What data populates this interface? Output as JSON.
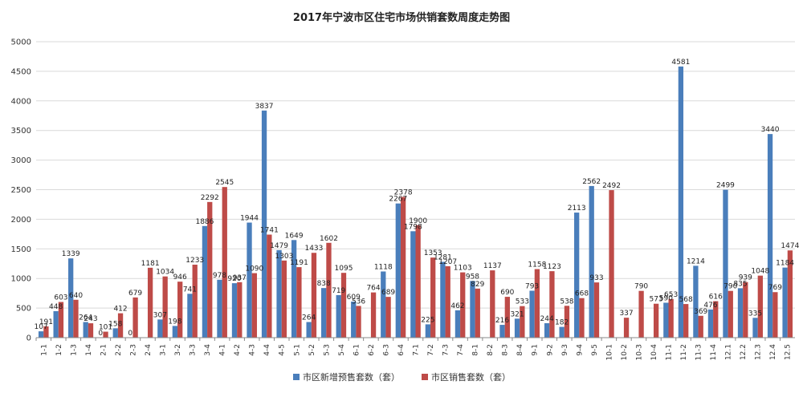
{
  "chart_data": {
    "type": "bar",
    "title": "2017年宁波市区住宅市场供销套数周度走势图",
    "ylim": [
      0,
      5000
    ],
    "yticks": [
      0,
      500,
      1000,
      1500,
      2000,
      2500,
      3000,
      3500,
      4000,
      4500,
      5000
    ],
    "grid": "horizontal",
    "legend_position": "bottom",
    "categories": [
      "1-1",
      "1-2",
      "1-3",
      "1-4",
      "2-1",
      "2-2",
      "2-3",
      "2-4",
      "3-1",
      "3-2",
      "3-3",
      "3-4",
      "4-1",
      "4-2",
      "4-3",
      "4-4",
      "4-5",
      "5-1",
      "5-2",
      "5-3",
      "5-4",
      "6-1",
      "6-2",
      "6-3",
      "6-4",
      "7-1",
      "7-2",
      "7-3",
      "7-4",
      "8-1",
      "8-2",
      "8-3",
      "8-4",
      "9-1",
      "9-2",
      "9-3",
      "9-4",
      "9-5",
      "10-1",
      "10-2",
      "10-3",
      "10-4",
      "11-1",
      "11-2",
      "11-3",
      "11-4",
      "12.1",
      "12.2",
      "12.3",
      "12.4",
      "12.5"
    ],
    "series": [
      {
        "name": "市区新增预售套数（套）",
        "color": "#4a7ebb",
        "values": [
          107,
          448,
          1339,
          264,
          0,
          158,
          0,
          null,
          307,
          198,
          741,
          1886,
          978,
          920,
          1944,
          3837,
          1479,
          1649,
          264,
          838,
          719,
          609,
          null,
          1118,
          2267,
          1798,
          225,
          1281,
          462,
          958,
          null,
          216,
          321,
          793,
          244,
          182,
          2113,
          2562,
          null,
          null,
          null,
          null,
          590,
          4581,
          1214,
          476,
          2499,
          835,
          335,
          3440,
          1184
        ]
      },
      {
        "name": "市区销售套数（套）",
        "color": "#be4b48",
        "values": [
          191,
          603,
          640,
          243,
          101,
          412,
          679,
          1181,
          1034,
          946,
          1233,
          2292,
          2545,
          937,
          1090,
          1741,
          1303,
          1191,
          1433,
          1602,
          1095,
          536,
          764,
          689,
          2378,
          1900,
          1353,
          1207,
          1103,
          829,
          1137,
          690,
          533,
          1158,
          1123,
          538,
          668,
          933,
          2492,
          337,
          790,
          573,
          653,
          568,
          369,
          616,
          790,
          939,
          1048,
          769,
          1474
        ]
      }
    ]
  }
}
